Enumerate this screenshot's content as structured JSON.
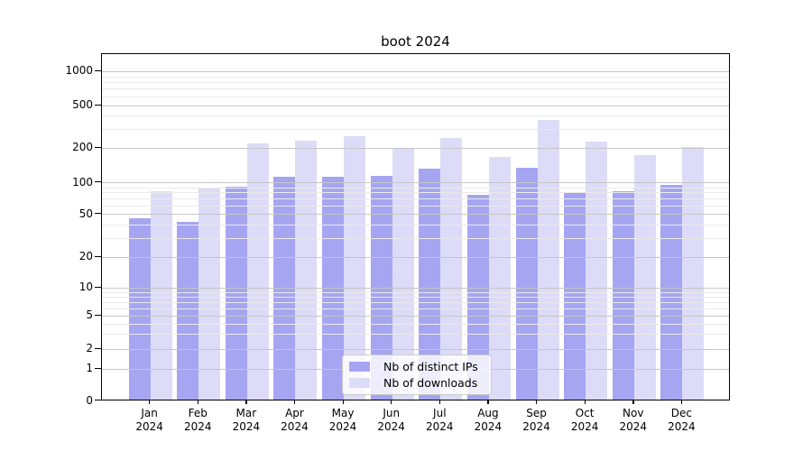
{
  "title": "boot 2024",
  "chart_data": {
    "type": "bar",
    "title": "boot 2024",
    "months": [
      "Jan",
      "Feb",
      "Mar",
      "Apr",
      "May",
      "Jun",
      "Jul",
      "Aug",
      "Sep",
      "Oct",
      "Nov",
      "Dec"
    ],
    "year": "2024",
    "series": [
      {
        "name": "Nb of distinct IPs",
        "color": "#a5a5f1",
        "values": [
          44,
          41,
          88,
          108,
          108,
          111,
          128,
          74,
          130,
          78,
          80,
          91
        ]
      },
      {
        "name": "Nb of downloads",
        "color": "#dcdcf8",
        "values": [
          80,
          86,
          212,
          227,
          250,
          190,
          240,
          163,
          351,
          222,
          169,
          198
        ]
      }
    ],
    "y_axis": {
      "scale": "symlog",
      "ticks": [
        0,
        1,
        2,
        5,
        10,
        20,
        50,
        100,
        200,
        500,
        1000
      ],
      "minor_gridlines": [
        3,
        4,
        6,
        7,
        8,
        9,
        30,
        40,
        60,
        70,
        80,
        90,
        300,
        400,
        600,
        700,
        800,
        900
      ]
    },
    "grid": true,
    "legend_position": "lower center",
    "colors": {
      "major_grid": "#c6c6c6",
      "minor_grid": "#eaeaea",
      "axis": "#000000",
      "background": "#ffffff"
    }
  }
}
